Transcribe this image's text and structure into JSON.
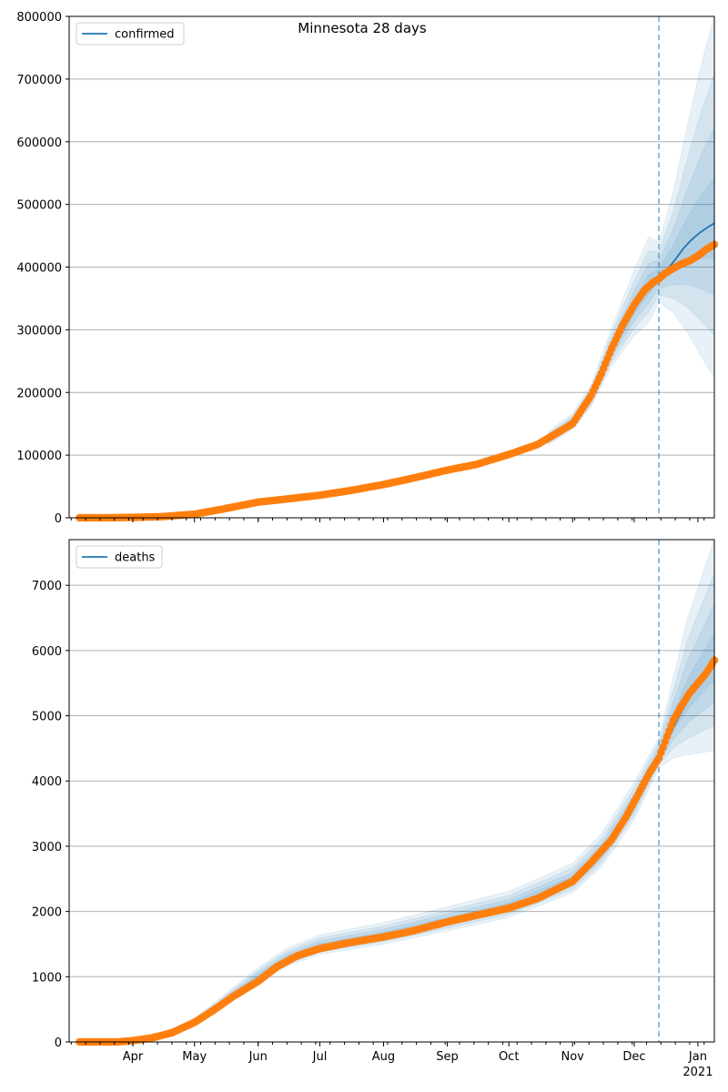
{
  "figure_title": "Minnesota 28 days",
  "colors": {
    "model": "#1f77b4",
    "observed": "#ff7f0e",
    "band": "#1f77b4",
    "grid": "#b0b0b0",
    "vline": "#1f77b4"
  },
  "x_ticks": [
    "Apr",
    "May",
    "Jun",
    "Jul",
    "Aug",
    "Sep",
    "Oct",
    "Nov",
    "Dec",
    "Jan"
  ],
  "x_year_label": "2021",
  "chart_data": [
    {
      "type": "line",
      "legend": "confirmed",
      "legend_placement": "upper-left",
      "grid": "y",
      "x_range": [
        "2020-03-01",
        "2021-01-09"
      ],
      "ylim": [
        0,
        800000
      ],
      "yticks": [
        "0",
        "100000",
        "200000",
        "300000",
        "400000",
        "500000",
        "600000",
        "700000",
        "800000"
      ],
      "forecast_start": "2020-12-13",
      "model_curve": [
        [
          "2020-12-13",
          385000
        ],
        [
          "2020-12-17",
          396000
        ],
        [
          "2020-12-21",
          412000
        ],
        [
          "2020-12-25",
          430000
        ],
        [
          "2020-12-29",
          444000
        ],
        [
          "2021-01-02",
          455000
        ],
        [
          "2021-01-06",
          464000
        ],
        [
          "2021-01-09",
          470000
        ]
      ],
      "observed": [
        [
          "2020-03-06",
          1
        ],
        [
          "2020-03-20",
          90
        ],
        [
          "2020-04-01",
          600
        ],
        [
          "2020-04-15",
          1800
        ],
        [
          "2020-05-01",
          5700
        ],
        [
          "2020-05-15",
          14000
        ],
        [
          "2020-06-01",
          25000
        ],
        [
          "2020-06-15",
          30000
        ],
        [
          "2020-07-01",
          36000
        ],
        [
          "2020-07-15",
          43000
        ],
        [
          "2020-08-01",
          53000
        ],
        [
          "2020-08-15",
          63000
        ],
        [
          "2020-09-01",
          76000
        ],
        [
          "2020-09-15",
          85000
        ],
        [
          "2020-10-01",
          101000
        ],
        [
          "2020-10-15",
          117000
        ],
        [
          "2020-11-01",
          150000
        ],
        [
          "2020-11-10",
          195000
        ],
        [
          "2020-11-15",
          230000
        ],
        [
          "2020-11-20",
          270000
        ],
        [
          "2020-11-25",
          305000
        ],
        [
          "2020-12-01",
          340000
        ],
        [
          "2020-12-06",
          363000
        ],
        [
          "2020-12-10",
          375000
        ],
        [
          "2020-12-13",
          381000
        ],
        [
          "2020-12-16",
          390000
        ],
        [
          "2020-12-20",
          398000
        ],
        [
          "2020-12-24",
          405000
        ],
        [
          "2020-12-28",
          410000
        ],
        [
          "2021-01-01",
          418000
        ],
        [
          "2021-01-05",
          428000
        ],
        [
          "2021-01-09",
          436000
        ]
      ],
      "band_center": [
        [
          "2020-10-20",
          125000
        ],
        [
          "2020-11-01",
          152000
        ],
        [
          "2020-11-10",
          192000
        ],
        [
          "2020-11-20",
          268000
        ],
        [
          "2020-12-01",
          335000
        ],
        [
          "2020-12-08",
          370000
        ],
        [
          "2020-12-13",
          385000
        ],
        [
          "2020-12-20",
          410000
        ],
        [
          "2020-12-27",
          438000
        ],
        [
          "2021-01-03",
          458000
        ],
        [
          "2021-01-09",
          470000
        ]
      ],
      "band_outer": [
        [
          "2020-10-20",
          12000
        ],
        [
          "2020-11-01",
          15000
        ],
        [
          "2020-11-10",
          20000
        ],
        [
          "2020-11-20",
          35000
        ],
        [
          "2020-12-01",
          60000
        ],
        [
          "2020-12-08",
          78000
        ],
        [
          "2020-12-13",
          55000
        ],
        [
          "2020-12-20",
          110000
        ],
        [
          "2020-12-27",
          190000
        ],
        [
          "2021-01-03",
          270000
        ],
        [
          "2021-01-09",
          330000
        ]
      ]
    },
    {
      "type": "line",
      "legend": "deaths",
      "legend_placement": "upper-left",
      "grid": "y",
      "x_range": [
        "2020-03-01",
        "2021-01-09"
      ],
      "ylim": [
        0,
        7700
      ],
      "yticks": [
        "0",
        "1000",
        "2000",
        "3000",
        "4000",
        "5000",
        "6000",
        "7000"
      ],
      "forecast_start": "2020-12-13",
      "model_curve": [
        [
          "2020-12-13",
          4400
        ],
        [
          "2020-12-17",
          4620
        ],
        [
          "2020-12-21",
          4880
        ],
        [
          "2020-12-25",
          5120
        ],
        [
          "2020-12-29",
          5340
        ],
        [
          "2021-01-02",
          5540
        ],
        [
          "2021-01-06",
          5720
        ],
        [
          "2021-01-09",
          5830
        ]
      ],
      "observed": [
        [
          "2020-03-06",
          0
        ],
        [
          "2020-03-25",
          2
        ],
        [
          "2020-04-01",
          20
        ],
        [
          "2020-04-10",
          60
        ],
        [
          "2020-04-20",
          140
        ],
        [
          "2020-05-01",
          300
        ],
        [
          "2020-05-10",
          480
        ],
        [
          "2020-05-20",
          700
        ],
        [
          "2020-06-01",
          930
        ],
        [
          "2020-06-10",
          1150
        ],
        [
          "2020-06-20",
          1320
        ],
        [
          "2020-07-01",
          1430
        ],
        [
          "2020-07-15",
          1520
        ],
        [
          "2020-08-01",
          1610
        ],
        [
          "2020-08-15",
          1700
        ],
        [
          "2020-09-01",
          1840
        ],
        [
          "2020-09-15",
          1940
        ],
        [
          "2020-10-01",
          2050
        ],
        [
          "2020-10-15",
          2200
        ],
        [
          "2020-11-01",
          2460
        ],
        [
          "2020-11-10",
          2750
        ],
        [
          "2020-11-20",
          3100
        ],
        [
          "2020-11-27",
          3450
        ],
        [
          "2020-12-03",
          3800
        ],
        [
          "2020-12-08",
          4100
        ],
        [
          "2020-12-13",
          4350
        ],
        [
          "2020-12-16",
          4600
        ],
        [
          "2020-12-20",
          4930
        ],
        [
          "2020-12-24",
          5150
        ],
        [
          "2020-12-28",
          5350
        ],
        [
          "2021-01-01",
          5500
        ],
        [
          "2021-01-05",
          5650
        ],
        [
          "2021-01-09",
          5850
        ]
      ],
      "band_center": [
        [
          "2020-04-15",
          100
        ],
        [
          "2020-05-01",
          300
        ],
        [
          "2020-05-15",
          620
        ],
        [
          "2020-06-01",
          1000
        ],
        [
          "2020-06-15",
          1280
        ],
        [
          "2020-07-01",
          1470
        ],
        [
          "2020-08-01",
          1640
        ],
        [
          "2020-09-01",
          1860
        ],
        [
          "2020-10-01",
          2080
        ],
        [
          "2020-11-01",
          2480
        ],
        [
          "2020-11-15",
          2900
        ],
        [
          "2020-12-01",
          3650
        ],
        [
          "2020-12-13",
          4400
        ],
        [
          "2020-12-20",
          4880
        ],
        [
          "2020-12-27",
          5300
        ],
        [
          "2021-01-03",
          5600
        ],
        [
          "2021-01-09",
          5850
        ]
      ],
      "band_outer": [
        [
          "2020-04-15",
          30
        ],
        [
          "2020-05-01",
          60
        ],
        [
          "2020-05-15",
          90
        ],
        [
          "2020-06-01",
          140
        ],
        [
          "2020-06-15",
          160
        ],
        [
          "2020-07-01",
          170
        ],
        [
          "2020-08-01",
          190
        ],
        [
          "2020-09-01",
          210
        ],
        [
          "2020-10-01",
          230
        ],
        [
          "2020-11-01",
          260
        ],
        [
          "2020-11-15",
          290
        ],
        [
          "2020-12-01",
          330
        ],
        [
          "2020-12-13",
          270
        ],
        [
          "2020-12-20",
          700
        ],
        [
          "2020-12-27",
          1200
        ],
        [
          "2021-01-03",
          1550
        ],
        [
          "2021-01-09",
          1850
        ]
      ]
    }
  ]
}
